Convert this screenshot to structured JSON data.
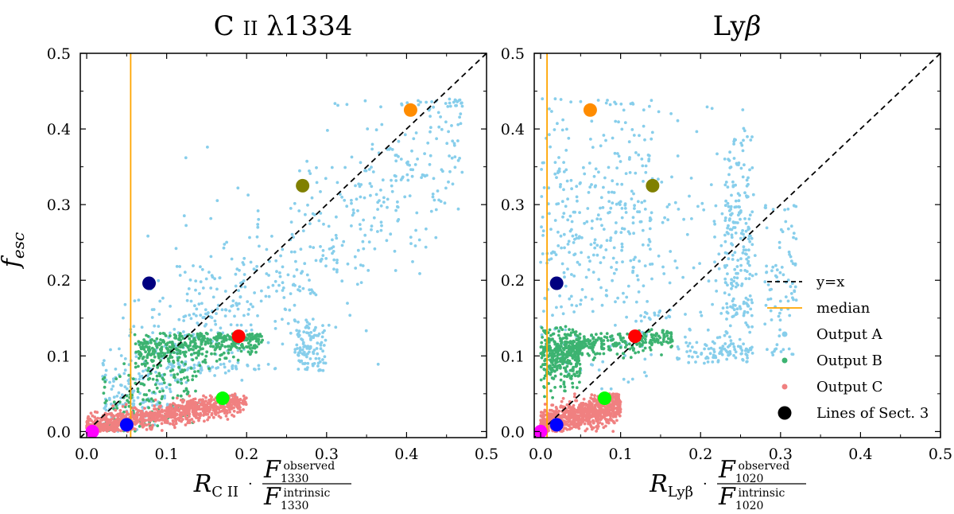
{
  "chart_data": [
    {
      "type": "scatter",
      "title": "C ii λ1334",
      "xlabel": "R_C II · F_1330^observed / F_1330^intrinsic",
      "ylabel": "f_esc",
      "xlim": [
        0,
        0.5
      ],
      "ylim": [
        0,
        0.5
      ],
      "x_ticks": [
        "0.0",
        "0.1",
        "0.2",
        "0.3",
        "0.4",
        "0.5"
      ],
      "y_ticks": [
        "0.0",
        "0.1",
        "0.2",
        "0.3",
        "0.4",
        "0.5"
      ],
      "reference_lines": [
        {
          "name": "y=x",
          "type": "diagonal",
          "color": "#000000",
          "style": "dashed"
        },
        {
          "name": "median",
          "type": "vertical",
          "x": 0.055,
          "color": "#FFA500"
        }
      ],
      "series_clouds": [
        {
          "name": "Output A",
          "color": "#87CEEB",
          "n": 900,
          "regions": [
            {
              "weight": 0.55,
              "x_range": [
                0.1,
                0.47
              ],
              "y_center_slope": 0.92,
              "y_offset": -0.02,
              "y_spread": 0.06,
              "y_min": 0.08,
              "y_max": 0.44
            },
            {
              "weight": 0.12,
              "x_range": [
                0.26,
                0.3
              ],
              "y_center_slope": 0,
              "y_offset": 0.11,
              "y_spread": 0.02,
              "y_min": 0.08,
              "y_max": 0.15
            },
            {
              "weight": 0.18,
              "x_range": [
                0.04,
                0.2
              ],
              "y_center_slope": 0.5,
              "y_offset": 0.06,
              "y_spread": 0.08,
              "y_min": 0.03,
              "y_max": 0.38
            },
            {
              "weight": 0.15,
              "x_range": [
                0.02,
                0.12
              ],
              "y_center_slope": 0.3,
              "y_offset": 0.04,
              "y_spread": 0.03,
              "y_min": 0.0,
              "y_max": 0.12
            }
          ]
        },
        {
          "name": "Output B",
          "color": "#3CB371",
          "n": 600,
          "regions": [
            {
              "weight": 0.7,
              "x_range": [
                0.06,
                0.22
              ],
              "y_center_slope": 0.12,
              "y_offset": 0.1,
              "y_spread": 0.012,
              "y_min": 0.08,
              "y_max": 0.13
            },
            {
              "weight": 0.3,
              "x_range": [
                0.02,
                0.14
              ],
              "y_center_slope": 0.4,
              "y_offset": 0.02,
              "y_spread": 0.03,
              "y_min": 0.0,
              "y_max": 0.11
            }
          ]
        },
        {
          "name": "Output C",
          "color": "#F08080",
          "n": 900,
          "regions": [
            {
              "weight": 1.0,
              "x_range": [
                0.0,
                0.2
              ],
              "y_center_slope": 0.18,
              "y_offset": 0.005,
              "y_spread": 0.008,
              "y_min": 0.0,
              "y_max": 0.05
            }
          ]
        }
      ],
      "highlight_points": [
        {
          "x": 0.405,
          "y": 0.425,
          "color": "#FF8C00"
        },
        {
          "x": 0.27,
          "y": 0.325,
          "color": "#808000"
        },
        {
          "x": 0.078,
          "y": 0.196,
          "color": "#000080"
        },
        {
          "x": 0.19,
          "y": 0.126,
          "color": "#FF0000"
        },
        {
          "x": 0.17,
          "y": 0.044,
          "color": "#00FF00"
        },
        {
          "x": 0.05,
          "y": 0.009,
          "color": "#0000FF"
        },
        {
          "x": 0.007,
          "y": 0.0,
          "color": "#FF00FF"
        }
      ]
    },
    {
      "type": "scatter",
      "title": "Lyβ",
      "xlabel": "R_Lyβ · F_1020^observed / F_1020^intrinsic",
      "ylabel": "",
      "xlim": [
        0,
        0.5
      ],
      "ylim": [
        0,
        0.5
      ],
      "x_ticks": [
        "0.0",
        "0.1",
        "0.2",
        "0.3",
        "0.4",
        "0.5"
      ],
      "y_ticks": [
        "0.0",
        "0.1",
        "0.2",
        "0.3",
        "0.4",
        "0.5"
      ],
      "reference_lines": [
        {
          "name": "y=x",
          "type": "diagonal",
          "color": "#000000",
          "style": "dashed"
        },
        {
          "name": "median",
          "type": "vertical",
          "x": 0.008,
          "color": "#FFA500"
        }
      ],
      "series_clouds": [
        {
          "name": "Output A",
          "color": "#87CEEB",
          "n": 850,
          "regions": [
            {
              "weight": 0.4,
              "x_range": [
                0.0,
                0.14
              ],
              "y_center_slope": 0,
              "y_offset": 0.27,
              "y_spread": 0.1,
              "y_min": 0.05,
              "y_max": 0.44
            },
            {
              "weight": 0.25,
              "x_range": [
                0.23,
                0.265
              ],
              "y_center_slope": 0,
              "y_offset": 0.25,
              "y_spread": 0.09,
              "y_min": 0.1,
              "y_max": 0.39
            },
            {
              "weight": 0.15,
              "x_range": [
                0.1,
                0.27
              ],
              "y_center_slope": 0,
              "y_offset": 0.26,
              "y_spread": 0.09,
              "y_min": 0.15,
              "y_max": 0.43
            },
            {
              "weight": 0.1,
              "x_range": [
                0.17,
                0.26
              ],
              "y_center_slope": 0,
              "y_offset": 0.105,
              "y_spread": 0.012,
              "y_min": 0.09,
              "y_max": 0.14
            },
            {
              "weight": 0.1,
              "x_range": [
                0.28,
                0.32
              ],
              "y_center_slope": 0,
              "y_offset": 0.2,
              "y_spread": 0.06,
              "y_min": 0.1,
              "y_max": 0.3
            }
          ]
        },
        {
          "name": "Output B",
          "color": "#3CB371",
          "n": 600,
          "regions": [
            {
              "weight": 0.55,
              "x_range": [
                0.0,
                0.05
              ],
              "y_center_slope": 0,
              "y_offset": 0.1,
              "y_spread": 0.02,
              "y_min": 0.01,
              "y_max": 0.14
            },
            {
              "weight": 0.45,
              "x_range": [
                0.03,
                0.165
              ],
              "y_center_slope": 0.1,
              "y_offset": 0.108,
              "y_spread": 0.007,
              "y_min": 0.09,
              "y_max": 0.135
            }
          ]
        },
        {
          "name": "Output C",
          "color": "#F08080",
          "n": 800,
          "regions": [
            {
              "weight": 1.0,
              "x_range": [
                0.0,
                0.1
              ],
              "y_center_slope": 0.25,
              "y_offset": 0.01,
              "y_spread": 0.01,
              "y_min": 0.0,
              "y_max": 0.05
            }
          ]
        }
      ],
      "highlight_points": [
        {
          "x": 0.062,
          "y": 0.425,
          "color": "#FF8C00"
        },
        {
          "x": 0.14,
          "y": 0.325,
          "color": "#808000"
        },
        {
          "x": 0.02,
          "y": 0.196,
          "color": "#000080"
        },
        {
          "x": 0.118,
          "y": 0.126,
          "color": "#FF0000"
        },
        {
          "x": 0.08,
          "y": 0.044,
          "color": "#00FF00"
        },
        {
          "x": 0.02,
          "y": 0.009,
          "color": "#0000FF"
        },
        {
          "x": 0.0,
          "y": 0.0,
          "color": "#FF00FF"
        }
      ]
    }
  ],
  "legend": {
    "placement": "right-middle of right panel",
    "entries": [
      {
        "label": "y=x",
        "kind": "dashed-line",
        "color": "#000000"
      },
      {
        "label": "median",
        "kind": "line",
        "color": "#FFA500"
      },
      {
        "label": "Output A",
        "kind": "dot",
        "color": "#87CEEB"
      },
      {
        "label": "Output B",
        "kind": "dot",
        "color": "#3CB371"
      },
      {
        "label": "Output C",
        "kind": "dot",
        "color": "#F08080"
      },
      {
        "label": "Lines of Sect. 3",
        "kind": "big-dot",
        "color": "#000000"
      }
    ]
  },
  "text": {
    "left_title_main": "C ",
    "left_title_ion": "II",
    "left_title_wave": " λ1334",
    "right_title_main": "Ly",
    "right_title_greek": "β",
    "ylabel_main": "f",
    "ylabel_sub": "esc",
    "left_xlabel_R": "R",
    "left_xlabel_sub": "C II",
    "right_xlabel_R": "R",
    "right_xlabel_sub": "Lyβ",
    "dot": "·",
    "F": "F",
    "left_num_sub": "1330",
    "left_den_sub": "1330",
    "right_num_sub": "1020",
    "right_den_sub": "1020",
    "sup_observed": "observed",
    "sup_intrinsic": "intrinsic"
  }
}
